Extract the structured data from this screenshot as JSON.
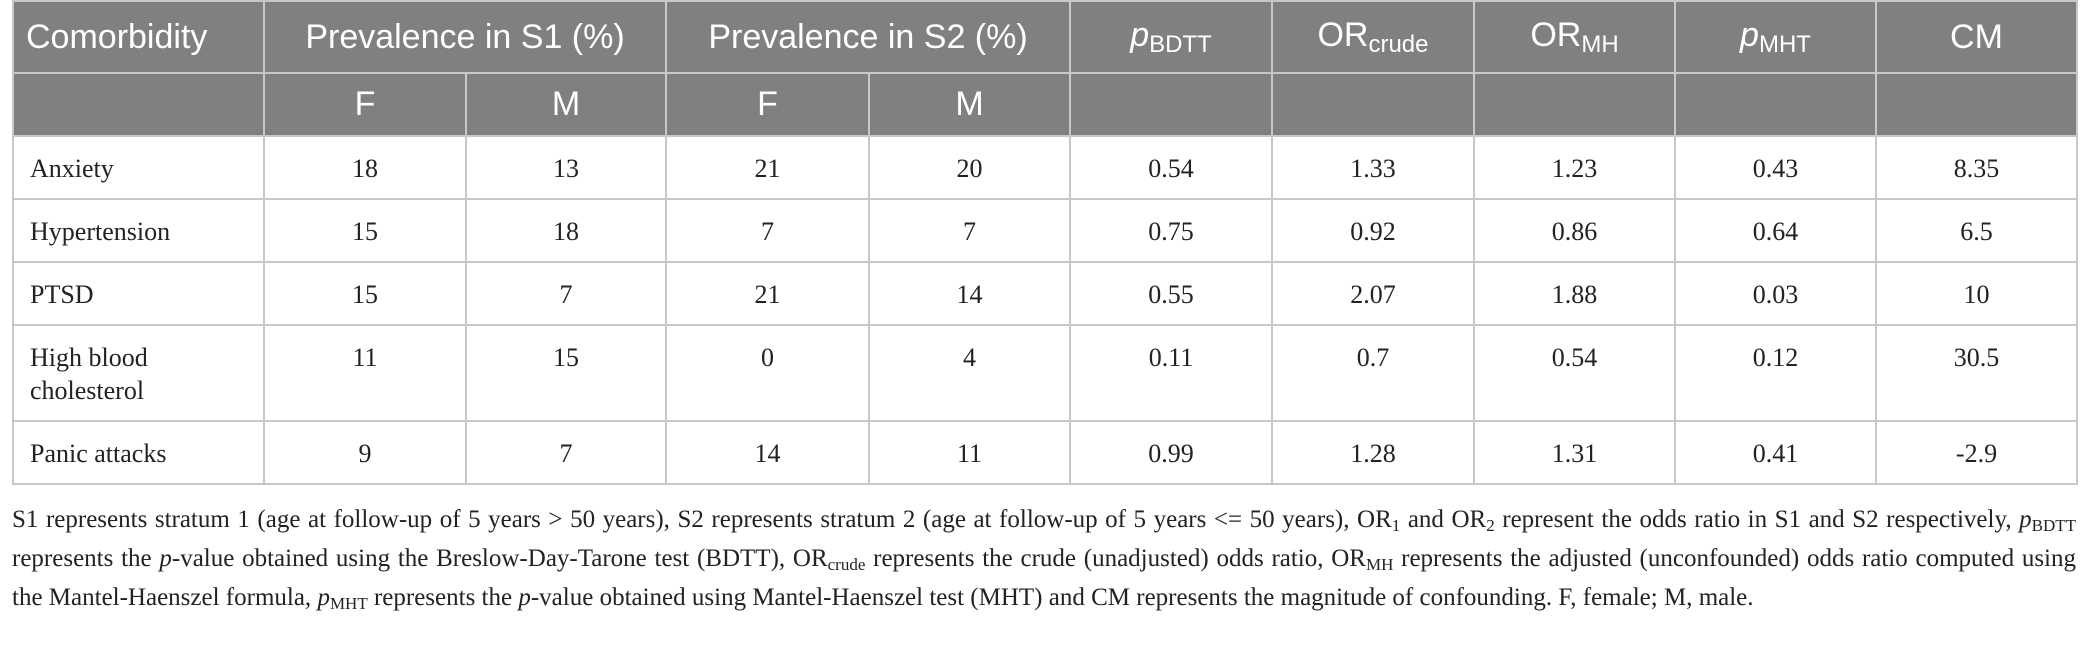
{
  "table": {
    "header": [
      {
        "text": "Comorbidity"
      },
      {
        "text": "Prevalence in S1 (%)"
      },
      {
        "text": "Prevalence in S2 (%)"
      },
      {
        "text": "p",
        "sub": "BDTT"
      },
      {
        "text": "OR",
        "sub": "crude"
      },
      {
        "text": "OR",
        "sub": "MH"
      },
      {
        "text": "p",
        "sub": "MHT"
      },
      {
        "text": "CM"
      }
    ],
    "subheader": [
      "F",
      "M",
      "F",
      "M"
    ],
    "rows": [
      [
        "Anxiety",
        18,
        13,
        21,
        20,
        0.54,
        1.33,
        1.23,
        0.43,
        8.35
      ],
      [
        "Hypertension",
        15,
        18,
        7,
        7,
        0.75,
        0.92,
        0.86,
        0.64,
        6.5
      ],
      [
        "PTSD",
        15,
        7,
        21,
        14,
        0.55,
        2.07,
        1.88,
        0.03,
        10
      ],
      [
        "High blood cholesterol",
        11,
        15,
        0,
        4,
        0.11,
        0.7,
        0.54,
        0.12,
        30.5
      ],
      [
        "Panic attacks",
        9,
        7,
        14,
        11,
        0.99,
        1.28,
        1.31,
        0.41,
        -2.9
      ]
    ]
  },
  "footnote": [
    {
      "text": "S1 represents stratum 1 (age at follow-up of 5 years > 50 years), S2 represents stratum 2 (age at follow-up of 5 years <= 50 years), OR"
    },
    {
      "text": "1",
      "format": "sub"
    },
    {
      "text": " and OR"
    },
    {
      "text": "2",
      "format": "sub"
    },
    {
      "text": " represent the odds ratio in S1 and S2 respectively, "
    },
    {
      "text": "p",
      "format": "italic"
    },
    {
      "text": "BDTT",
      "format": "sub"
    },
    {
      "text": " represents the "
    },
    {
      "text": "p",
      "format": "italic"
    },
    {
      "text": "-value obtained using the Breslow-Day-Tarone test (BDTT), OR"
    },
    {
      "text": "crude",
      "format": "sub"
    },
    {
      "text": " represents the crude (unadjusted) odds ratio, OR"
    },
    {
      "text": "MH",
      "format": "sub"
    },
    {
      "text": " represents the adjusted (unconfounded) odds ratio computed using the Mantel-Haenszel formula, "
    },
    {
      "text": "p",
      "format": "italic"
    },
    {
      "text": "MHT",
      "format": "sub"
    },
    {
      "text": " represents the "
    },
    {
      "text": "p",
      "format": "italic"
    },
    {
      "text": "-value obtained using Mantel-Haenszel test (MHT) and CM represents the magnitude of confounding. F, female; M, male."
    }
  ]
}
